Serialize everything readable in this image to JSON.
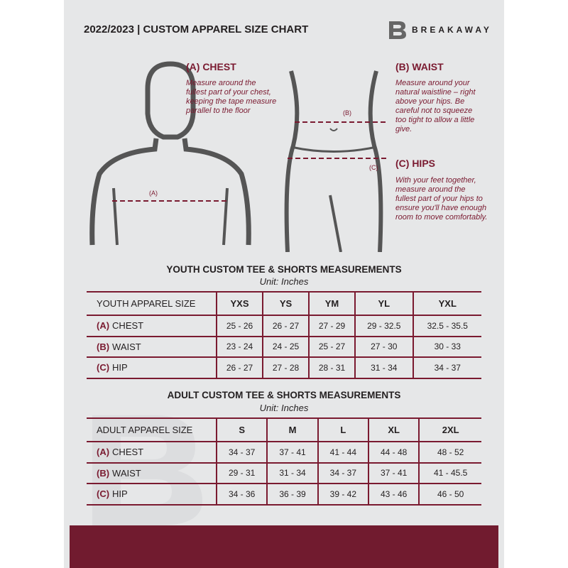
{
  "header": {
    "title": "2022/2023  |  CUSTOM APPAREL SIZE CHART",
    "brand": "BREAKAWAY",
    "logo_letter": "B"
  },
  "measures": {
    "chest": {
      "title": "(A) CHEST",
      "desc": "Measure around the fullest part of your chest, keeping the tape measure parallel to the floor",
      "marker": "(A)"
    },
    "waist": {
      "title": "(B) WAIST",
      "desc": "Measure around your natural waistline – right above your hips. Be careful not to squeeze too tight to allow a little give.",
      "marker": "(B)"
    },
    "hips": {
      "title": "(C) HIPS",
      "desc": "With your feet together, measure around the fullest part of your hips to ensure you'll have enough room to move comfortably.",
      "marker": "(C)"
    }
  },
  "youth": {
    "title": "YOUTH CUSTOM TEE & SHORTS MEASUREMENTS",
    "unit": "Unit: Inches",
    "header": [
      "YOUTH APPAREL SIZE",
      "YXS",
      "YS",
      "YM",
      "YL",
      "YXL"
    ],
    "rows": [
      {
        "abbr": "(A)",
        "label": "CHEST",
        "values": [
          "25 - 26",
          "26 - 27",
          "27 - 29",
          "29 - 32.5",
          "32.5 - 35.5"
        ]
      },
      {
        "abbr": "(B)",
        "label": "WAIST",
        "values": [
          "23 - 24",
          "24 - 25",
          "25 - 27",
          "27 - 30",
          "30 - 33"
        ]
      },
      {
        "abbr": "(C)",
        "label": "HIP",
        "values": [
          "26 - 27",
          "27 - 28",
          "28 - 31",
          "31 - 34",
          "34 - 37"
        ]
      }
    ]
  },
  "adult": {
    "title": "ADULT CUSTOM TEE & SHORTS MEASUREMENTS",
    "unit": "Unit: Inches",
    "header": [
      "ADULT APPAREL SIZE",
      "S",
      "M",
      "L",
      "XL",
      "2XL"
    ],
    "rows": [
      {
        "abbr": "(A)",
        "label": "CHEST",
        "values": [
          "34 - 37",
          "37 - 41",
          "41 - 44",
          "44 - 48",
          "48 - 52"
        ]
      },
      {
        "abbr": "(B)",
        "label": "WAIST",
        "values": [
          "29 - 31",
          "31 - 34",
          "34 - 37",
          "37 - 41",
          "41 - 45.5"
        ]
      },
      {
        "abbr": "(C)",
        "label": "HIP",
        "values": [
          "34 - 36",
          "36 - 39",
          "39 - 42",
          "43 - 46",
          "46 - 50"
        ]
      }
    ]
  },
  "colors": {
    "accent": "#7a1a30",
    "background": "#e6e7e8",
    "footer": "#711b2f"
  }
}
